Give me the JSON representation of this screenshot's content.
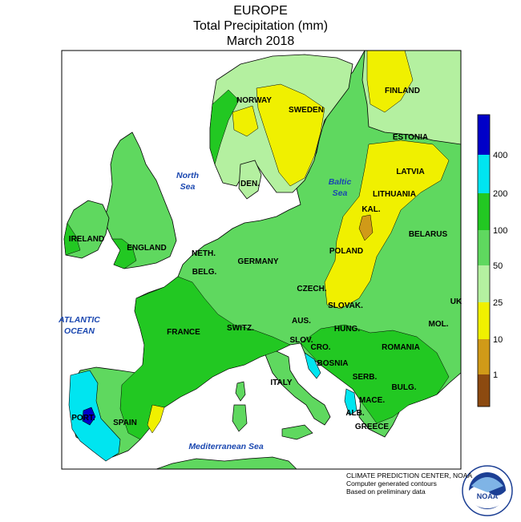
{
  "header": {
    "line1": "EUROPE",
    "line2": "Total Precipitation (mm)",
    "line3": "March 2018"
  },
  "regions": [
    {
      "name": "ireland",
      "label": "IRELAND"
    },
    {
      "name": "england",
      "label": "ENGLAND"
    },
    {
      "name": "norway",
      "label": "NORWAY"
    },
    {
      "name": "sweden",
      "label": "SWEDEN"
    },
    {
      "name": "finland",
      "label": "FINLAND"
    },
    {
      "name": "estonia",
      "label": "ESTONIA"
    },
    {
      "name": "latvia",
      "label": "LATVIA"
    },
    {
      "name": "lithuania",
      "label": "LITHUANIA"
    },
    {
      "name": "kaliningrad",
      "label": "KAL."
    },
    {
      "name": "belarus",
      "label": "BELARUS"
    },
    {
      "name": "denmark",
      "label": "DEN."
    },
    {
      "name": "netherlands",
      "label": "NETH."
    },
    {
      "name": "belgium",
      "label": "BELG."
    },
    {
      "name": "germany",
      "label": "GERMANY"
    },
    {
      "name": "poland",
      "label": "POLAND"
    },
    {
      "name": "czech",
      "label": "CZECH."
    },
    {
      "name": "slovakia",
      "label": "SLOVAK."
    },
    {
      "name": "ukraine",
      "label": "UK"
    },
    {
      "name": "france",
      "label": "FRANCE"
    },
    {
      "name": "switzerland",
      "label": "SWITZ."
    },
    {
      "name": "austria",
      "label": "AUS."
    },
    {
      "name": "hungary",
      "label": "HUNG."
    },
    {
      "name": "moldova",
      "label": "MOL."
    },
    {
      "name": "slovenia",
      "label": "SLOV."
    },
    {
      "name": "croatia",
      "label": "CRO."
    },
    {
      "name": "romania",
      "label": "ROMANIA"
    },
    {
      "name": "bosnia",
      "label": "BOSNIA"
    },
    {
      "name": "serbia",
      "label": "SERB."
    },
    {
      "name": "bulgaria",
      "label": "BULG."
    },
    {
      "name": "macedonia",
      "label": "MACE."
    },
    {
      "name": "albania",
      "label": "ALB."
    },
    {
      "name": "greece",
      "label": "GREECE"
    },
    {
      "name": "italy",
      "label": "ITALY"
    },
    {
      "name": "spain",
      "label": "SPAIN"
    },
    {
      "name": "portugal",
      "label": "PORT."
    }
  ],
  "water_bodies": {
    "north_sea_1": "North",
    "north_sea_2": "Sea",
    "baltic_1": "Baltic",
    "baltic_2": "Sea",
    "atlantic_1": "ATLANTIC",
    "atlantic_2": "OCEAN",
    "mediterranean": "Mediterranean Sea"
  },
  "legend": {
    "ticks": [
      "400",
      "200",
      "100",
      "50",
      "25",
      "10",
      "1"
    ],
    "colors": [
      "#0000c8",
      "#00e5f0",
      "#22c822",
      "#5fd85f",
      "#b4f0a0",
      "#f0f000",
      "#d09a18",
      "#8c4a10"
    ]
  },
  "credit": {
    "line1": "CLIMATE PREDICTION CENTER, NOAA",
    "line2": "Computer generated contours",
    "line3": "Based on preliminary data"
  },
  "logo": {
    "text": "NOAA",
    "ring_text": "NATIONAL OCEANIC AND ATMOSPHERIC ADMINISTRATION · U.S. DEPARTMENT OF COMMERCE"
  }
}
